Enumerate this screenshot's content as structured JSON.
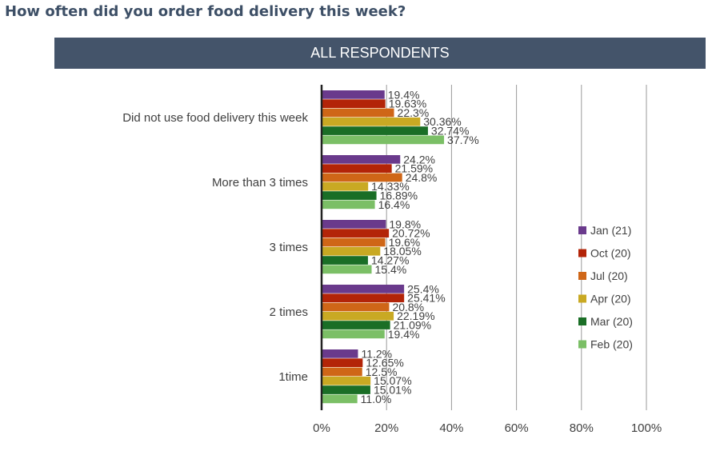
{
  "page": {
    "title": "How often did you order food delivery this week?",
    "banner": "ALL RESPONDENTS"
  },
  "chart_data": {
    "type": "bar",
    "orientation": "horizontal",
    "title": "How often did you order food delivery this week?",
    "subtitle": "ALL RESPONDENTS",
    "xlim": [
      0,
      100
    ],
    "x_ticks": [
      "0%",
      "20%",
      "40%",
      "60%",
      "80%",
      "100%"
    ],
    "grid": true,
    "legend_position": "right",
    "categories": [
      "Did not use food delivery this week",
      "More than 3 times",
      "3 times",
      "2 times",
      "1time"
    ],
    "series": [
      {
        "name": "Jan (21)",
        "color": "#6a3a8c",
        "values": [
          19.4,
          24.2,
          19.8,
          25.4,
          11.2
        ],
        "labels": [
          "19.4%",
          "24.2%",
          "19.8%",
          "25.4%",
          "11.2%"
        ]
      },
      {
        "name": "Oct (20)",
        "color": "#b32408",
        "values": [
          19.63,
          21.59,
          20.72,
          25.41,
          12.65
        ],
        "labels": [
          "19.63%",
          "21.59%",
          "20.72%",
          "25.41%",
          "12.65%"
        ]
      },
      {
        "name": "Jul (20)",
        "color": "#cf6617",
        "values": [
          22.3,
          24.8,
          19.6,
          20.8,
          12.5
        ],
        "labels": [
          "22.3%",
          "24.8%",
          "19.6%",
          "20.8%",
          "12.5%"
        ]
      },
      {
        "name": "Apr (20)",
        "color": "#c9a923",
        "values": [
          30.36,
          14.33,
          18.05,
          22.19,
          15.07
        ],
        "labels": [
          "30.36%",
          "14.33%",
          "18.05%",
          "22.19%",
          "15.07%"
        ]
      },
      {
        "name": "Mar (20)",
        "color": "#1a6e26",
        "values": [
          32.74,
          16.89,
          14.27,
          21.09,
          15.01
        ],
        "labels": [
          "32.74%",
          "16.89%",
          "14.27%",
          "21.09%",
          "15.01%"
        ]
      },
      {
        "name": "Feb (20)",
        "color": "#7bbf66",
        "values": [
          37.7,
          16.4,
          15.4,
          19.4,
          11.0
        ],
        "labels": [
          "37.7%",
          "16.4%",
          "15.4%",
          "19.4%",
          "11.0%"
        ]
      }
    ]
  }
}
